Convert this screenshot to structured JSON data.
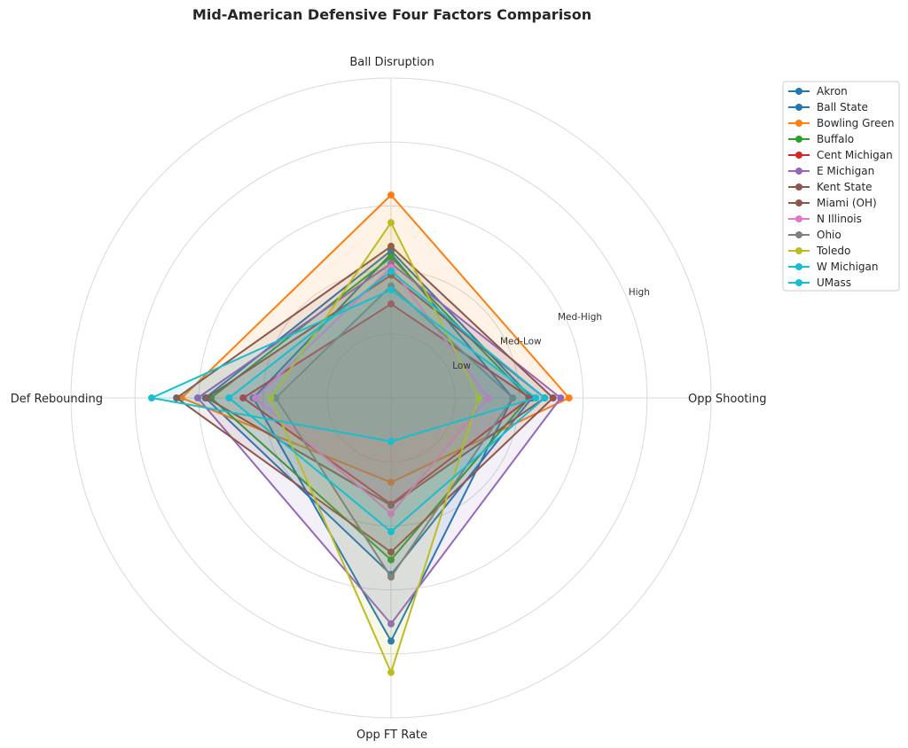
{
  "chart_data": {
    "type": "radar",
    "title": "Mid-American Defensive Four Factors Comparison",
    "categories": [
      "Ball Disruption",
      "Opp Shooting",
      "Opp FT Rate",
      "Def Rebounding"
    ],
    "rlim": [
      0,
      5
    ],
    "r_ticks": [
      1,
      2,
      3,
      4
    ],
    "r_tick_labels": [
      "Low",
      "Med-Low",
      "Med-High",
      "High"
    ],
    "grid": true,
    "legend_position": "upper-right-outside",
    "series": [
      {
        "name": "Akron",
        "color": "#1f77b4",
        "values": [
          2.25,
          1.9,
          3.8,
          2.15
        ]
      },
      {
        "name": "Ball State",
        "color": "#1f77b4",
        "values": [
          2.3,
          2.2,
          2.76,
          2.9
        ]
      },
      {
        "name": "Bowling Green",
        "color": "#ff7f0e",
        "values": [
          3.17,
          2.78,
          1.32,
          3.27
        ]
      },
      {
        "name": "Buffalo",
        "color": "#2ca02c",
        "values": [
          2.2,
          2.15,
          2.53,
          2.81
        ]
      },
      {
        "name": "Cent Michigan",
        "color": "#d62728",
        "values": [
          1.47,
          2.17,
          1.66,
          2.31
        ]
      },
      {
        "name": "E Michigan",
        "color": "#9467bd",
        "values": [
          2.1,
          2.65,
          3.53,
          3.02
        ]
      },
      {
        "name": "Kent State",
        "color": "#8c564b",
        "values": [
          2.37,
          2.53,
          2.41,
          3.35
        ]
      },
      {
        "name": "Miami (OH)",
        "color": "#8c564b",
        "values": [
          1.92,
          2.4,
          1.68,
          2.88
        ]
      },
      {
        "name": "N Illinois",
        "color": "#e377c2",
        "values": [
          2.04,
          1.52,
          1.81,
          2.12
        ]
      },
      {
        "name": "Ohio",
        "color": "#7f7f7f",
        "values": [
          1.75,
          1.9,
          2.8,
          1.8
        ]
      },
      {
        "name": "Toledo",
        "color": "#bcbd22",
        "values": [
          2.74,
          1.37,
          4.29,
          1.88
        ]
      },
      {
        "name": "W Michigan",
        "color": "#17becf",
        "values": [
          1.98,
          2.4,
          2.09,
          2.53
        ]
      },
      {
        "name": "UMass",
        "color": "#17becf",
        "values": [
          1.69,
          2.26,
          0.68,
          3.74
        ]
      }
    ]
  }
}
